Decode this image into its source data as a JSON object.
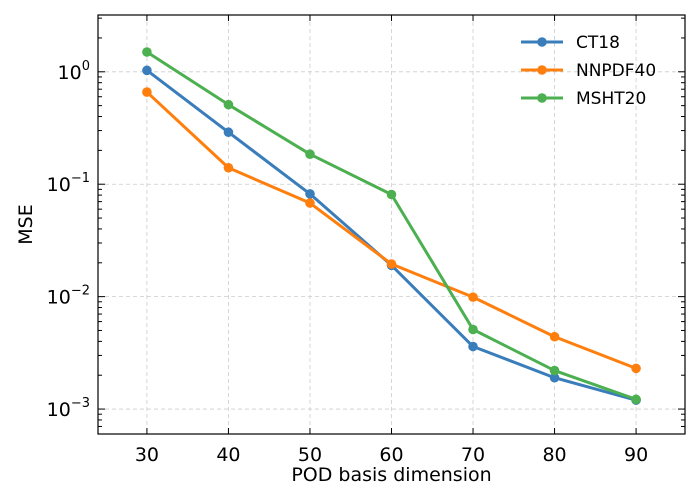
{
  "chart_data": {
    "type": "line",
    "title": "",
    "xlabel": "POD basis dimension",
    "ylabel": "MSE",
    "yscale": "log",
    "x": [
      30,
      40,
      50,
      60,
      70,
      80,
      90
    ],
    "xlim": [
      24,
      96
    ],
    "ylim": [
      0.0006,
      3.2
    ],
    "xticks": [
      30,
      40,
      50,
      60,
      70,
      80,
      90
    ],
    "xtick_labels": [
      "30",
      "40",
      "50",
      "60",
      "70",
      "80",
      "90"
    ],
    "yticks": [
      {
        "value": 1,
        "base": "10",
        "exp": "0"
      },
      {
        "value": 0.1,
        "base": "10",
        "exp": "−1"
      },
      {
        "value": 0.01,
        "base": "10",
        "exp": "−2"
      },
      {
        "value": 0.001,
        "base": "10",
        "exp": "−3"
      }
    ],
    "grid": true,
    "legend_position": "top-right",
    "series": [
      {
        "name": "CT18",
        "color": "#3a7dbb",
        "values": [
          1.03,
          0.29,
          0.082,
          0.019,
          0.0036,
          0.0019,
          0.0012
        ]
      },
      {
        "name": "NNPDF40",
        "color": "#ff7f0e",
        "values": [
          0.66,
          0.14,
          0.068,
          0.0195,
          0.0099,
          0.0044,
          0.0023
        ]
      },
      {
        "name": "MSHT20",
        "color": "#4caf50",
        "values": [
          1.5,
          0.51,
          0.185,
          0.081,
          0.0051,
          0.0022,
          0.00122
        ]
      }
    ]
  }
}
